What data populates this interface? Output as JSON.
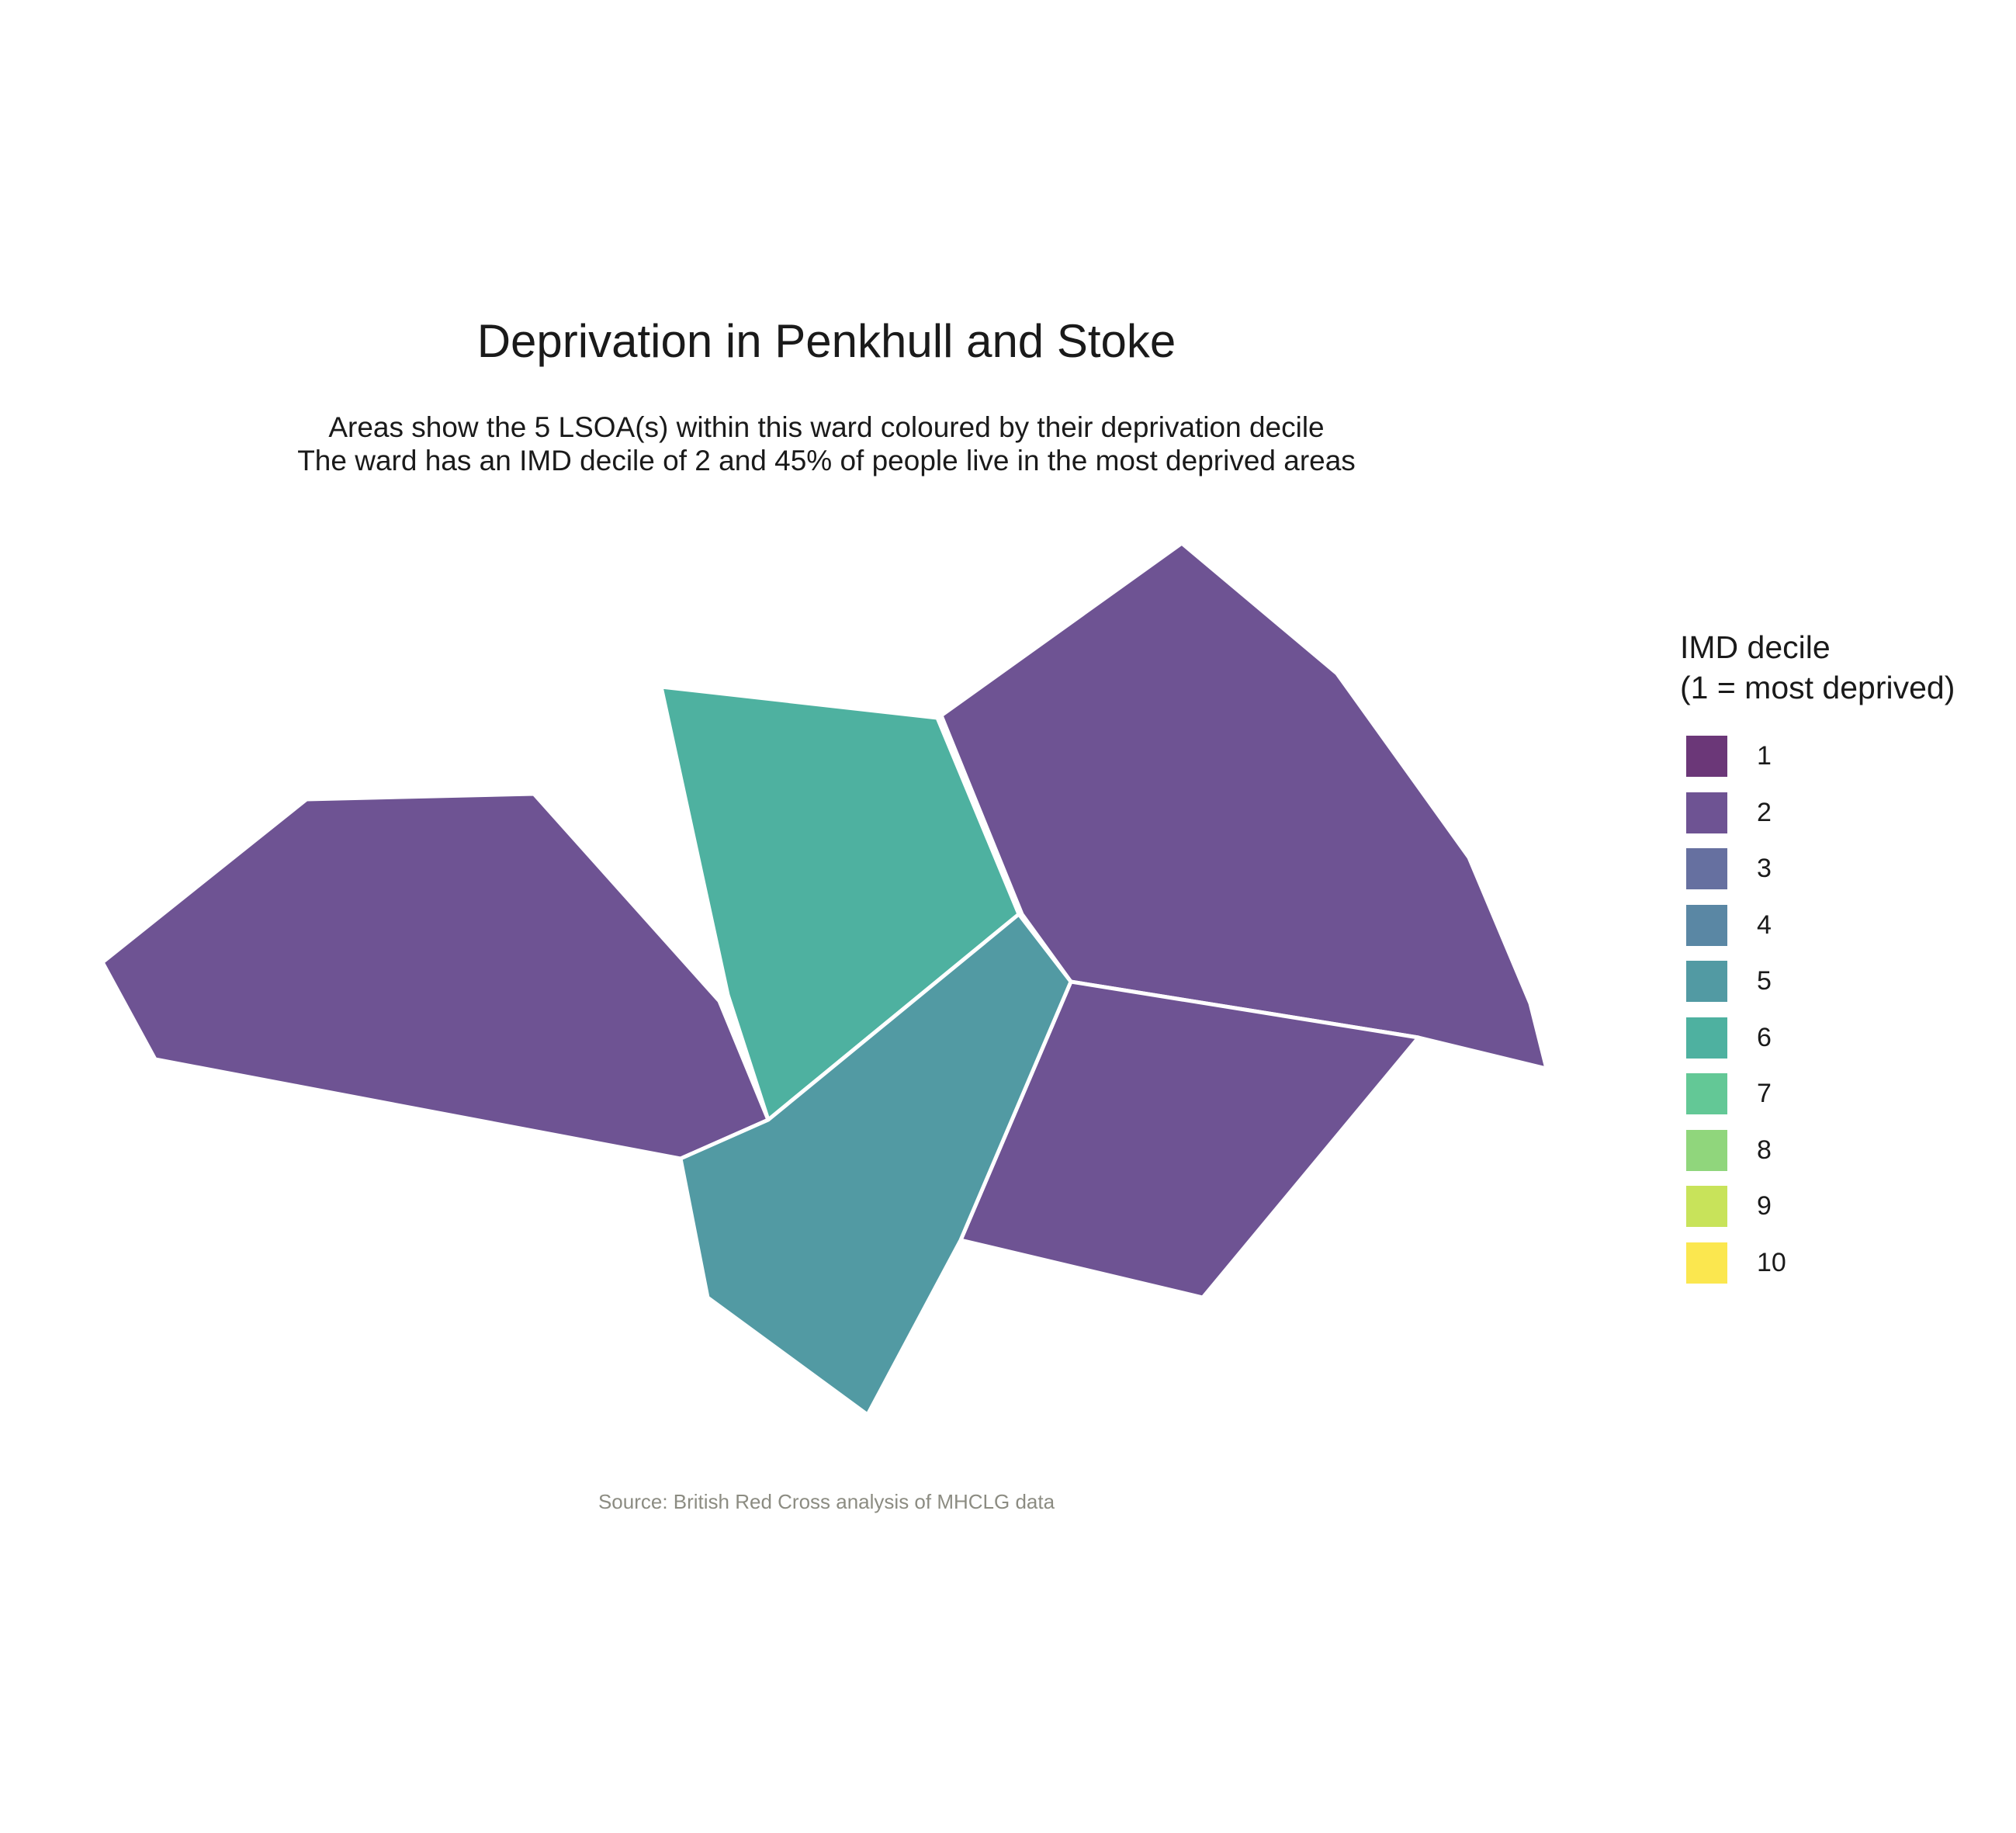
{
  "title": "Deprivation in Penkhull and Stoke",
  "subtitle_lines": [
    "Areas show the 5 LSOA(s) within this ward coloured by their deprivation decile",
    "The ward has an IMD decile of 2 and 45% of people live in the most deprived areas"
  ],
  "source": "Source: British Red Cross analysis of MHCLG data",
  "legend": {
    "title_lines": [
      "IMD decile",
      "(1 = most deprived)"
    ],
    "items": [
      {
        "label": "1",
        "color": "#6b3778"
      },
      {
        "label": "2",
        "color": "#6e5393"
      },
      {
        "label": "3",
        "color": "#6670a0"
      },
      {
        "label": "4",
        "color": "#5a87a4"
      },
      {
        "label": "5",
        "color": "#529aa3"
      },
      {
        "label": "6",
        "color": "#4eb1a0"
      },
      {
        "label": "7",
        "color": "#63c896"
      },
      {
        "label": "8",
        "color": "#90d67c"
      },
      {
        "label": "9",
        "color": "#c8e35a"
      },
      {
        "label": "10",
        "color": "#fbe74f"
      }
    ]
  },
  "chart_data": {
    "type": "choropleth",
    "ward": "Penkhull and Stoke",
    "ward_imd_decile": 2,
    "percent_in_most_deprived": 45,
    "lsoa_count": 5,
    "areas": [
      {
        "id": "lsoa-west",
        "decile": 2
      },
      {
        "id": "lsoa-north-centre",
        "decile": 6
      },
      {
        "id": "lsoa-north-east",
        "decile": 2
      },
      {
        "id": "lsoa-south-centre",
        "decile": 5
      },
      {
        "id": "lsoa-south-east",
        "decile": 2
      }
    ]
  }
}
